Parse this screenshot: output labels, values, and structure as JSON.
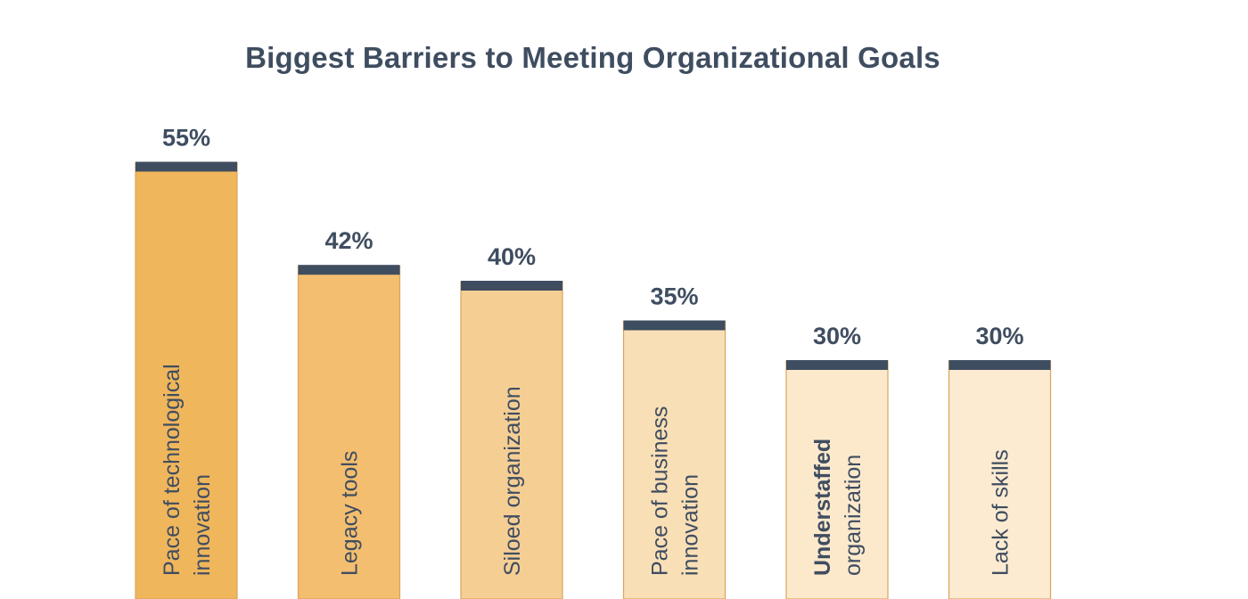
{
  "chart_data": {
    "type": "bar",
    "title": "Biggest Barriers to Meeting Organizational Goals",
    "categories": [
      "Pace of technological innovation",
      "Legacy tools",
      "Siloed organization",
      "Pace of business innovation",
      "Understaffed organization",
      "Lack of skills"
    ],
    "category_lines": [
      [
        {
          "text": "Pace of technological",
          "bold": false
        },
        {
          "text": "innovation",
          "bold": false
        }
      ],
      [
        {
          "text": "Legacy tools",
          "bold": false
        }
      ],
      [
        {
          "text": "Siloed organization",
          "bold": false
        }
      ],
      [
        {
          "text": "Pace of business",
          "bold": false
        },
        {
          "text": "innovation",
          "bold": false
        }
      ],
      [
        {
          "text": "Understaffed",
          "bold": true
        },
        {
          "text": "organization",
          "bold": false
        }
      ],
      [
        {
          "text": "Lack of skills",
          "bold": false
        }
      ]
    ],
    "values": [
      55,
      42,
      40,
      35,
      30,
      30
    ],
    "value_labels": [
      "55%",
      "42%",
      "40%",
      "35%",
      "30%",
      "30%"
    ],
    "unit": "%",
    "xlabel": "",
    "ylabel": "",
    "grid": false,
    "legend": "none"
  },
  "colors": {
    "title": "#3f4d60",
    "value_label": "#3f4d60",
    "bar_cap": "#3f4d60",
    "bar_border": "#d9a55b",
    "category_label": "#3f4d60",
    "bar_fills": [
      "#f0b65c",
      "#f3be6f",
      "#f5ce94",
      "#f9dfb6",
      "#fce9cc",
      "#fcebd1"
    ]
  }
}
